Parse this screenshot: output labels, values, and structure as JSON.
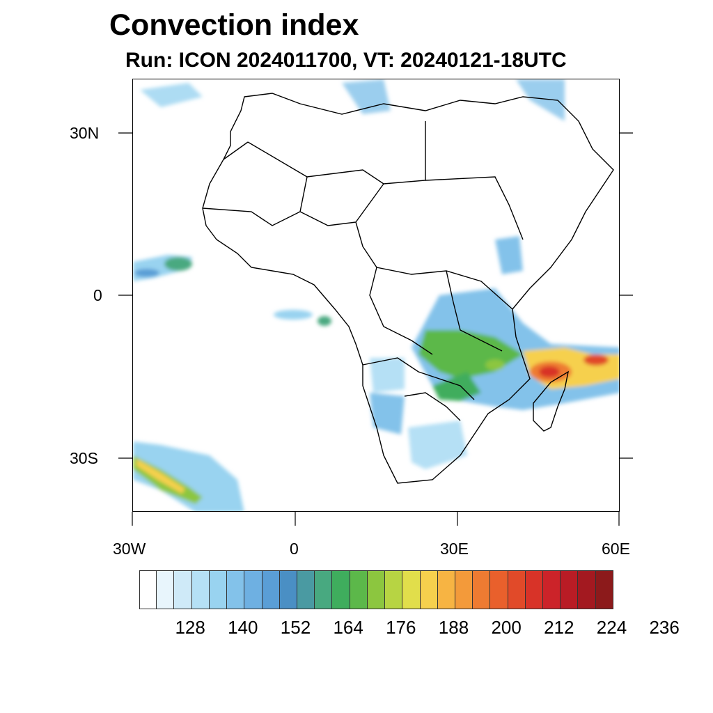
{
  "title": "Convection index",
  "subtitle": "Run: ICON 2024011700,  VT: 20240121-18UTC",
  "map": {
    "lat_labels": [
      "30N",
      "0",
      "30S"
    ],
    "lon_labels": [
      "30W",
      "0",
      "30E",
      "60E"
    ]
  },
  "colorbar": {
    "colors": [
      "#ffffff",
      "#e8f5fc",
      "#cfeaf8",
      "#b5e0f5",
      "#99d3f0",
      "#83c2ea",
      "#6eb0e2",
      "#5a9ed6",
      "#4a8fc4",
      "#4a9aa2",
      "#48a980",
      "#3fad5d",
      "#5cb84a",
      "#8cc63f",
      "#b7d443",
      "#e1de4b",
      "#f6d04d",
      "#f7b443",
      "#f39a3a",
      "#ee7b32",
      "#e9602c",
      "#e14a29",
      "#d83328",
      "#cc2329",
      "#b91c25",
      "#a31920",
      "#8c1a1b"
    ],
    "labels": [
      "128",
      "140",
      "152",
      "164",
      "176",
      "188",
      "200",
      "212",
      "224",
      "236"
    ]
  }
}
